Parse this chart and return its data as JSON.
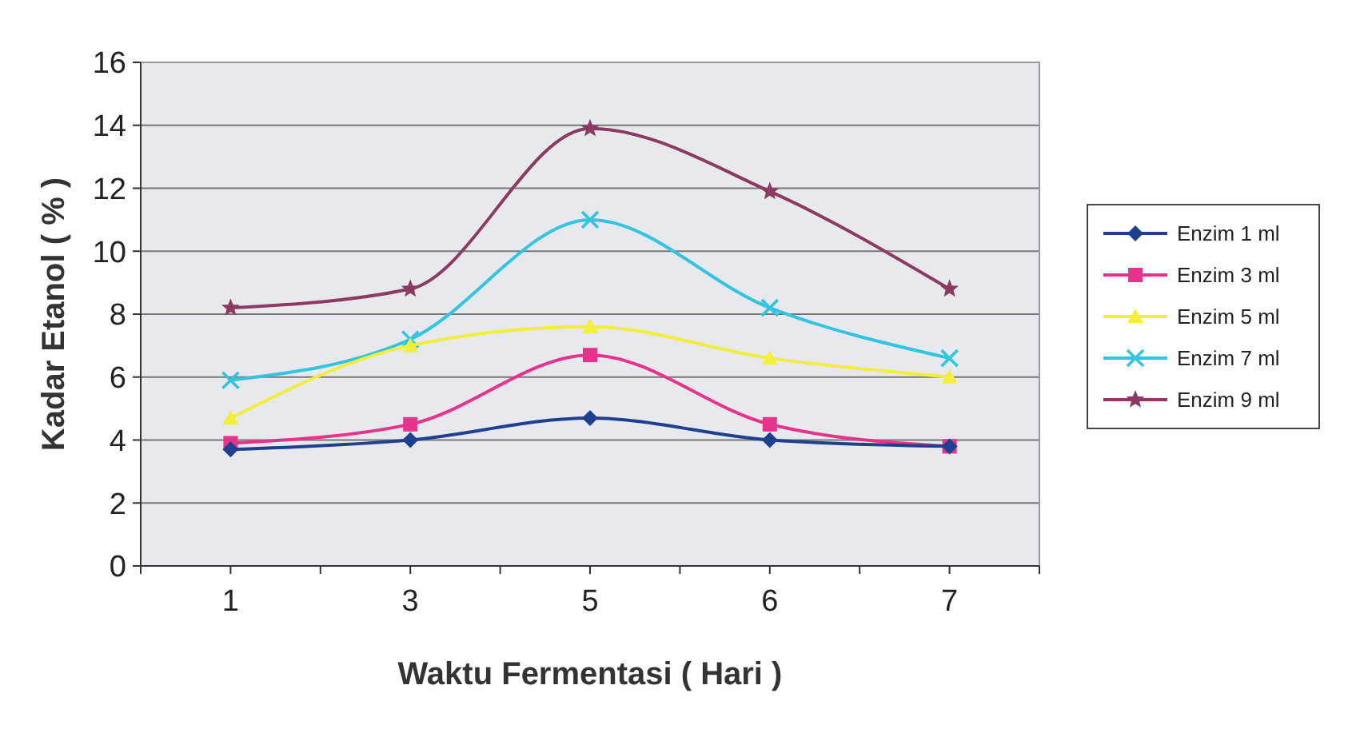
{
  "chart_data": {
    "type": "line",
    "xlabel": "Waktu Fermentasi ( Hari )",
    "ylabel": "Kadar Etanol ( % )",
    "categories": [
      "1",
      "3",
      "5",
      "6",
      "7"
    ],
    "series": [
      {
        "name": "Enzim 1 ml",
        "color": "#1f3f8f",
        "marker": "diamond",
        "values": [
          3.7,
          4.0,
          4.7,
          4.0,
          3.8
        ]
      },
      {
        "name": "Enzim 3 ml",
        "color": "#e8338a",
        "marker": "square",
        "values": [
          3.9,
          4.5,
          6.7,
          4.5,
          3.8
        ]
      },
      {
        "name": "Enzim 5 ml",
        "color": "#f2ee3a",
        "marker": "triangle",
        "values": [
          4.7,
          7.0,
          7.6,
          6.6,
          6.0
        ]
      },
      {
        "name": "Enzim 7 ml",
        "color": "#33c4e0",
        "marker": "cross",
        "values": [
          5.9,
          7.2,
          11.0,
          8.2,
          6.6
        ]
      },
      {
        "name": "Enzim 9 ml",
        "color": "#8b3a62",
        "marker": "star",
        "values": [
          8.2,
          8.8,
          13.9,
          11.9,
          8.8
        ]
      }
    ],
    "ylim": [
      0,
      16
    ],
    "yticks": [
      0,
      2,
      4,
      6,
      8,
      10,
      12,
      14,
      16
    ],
    "grid": "y",
    "legend": "right",
    "line_style": "solid"
  }
}
